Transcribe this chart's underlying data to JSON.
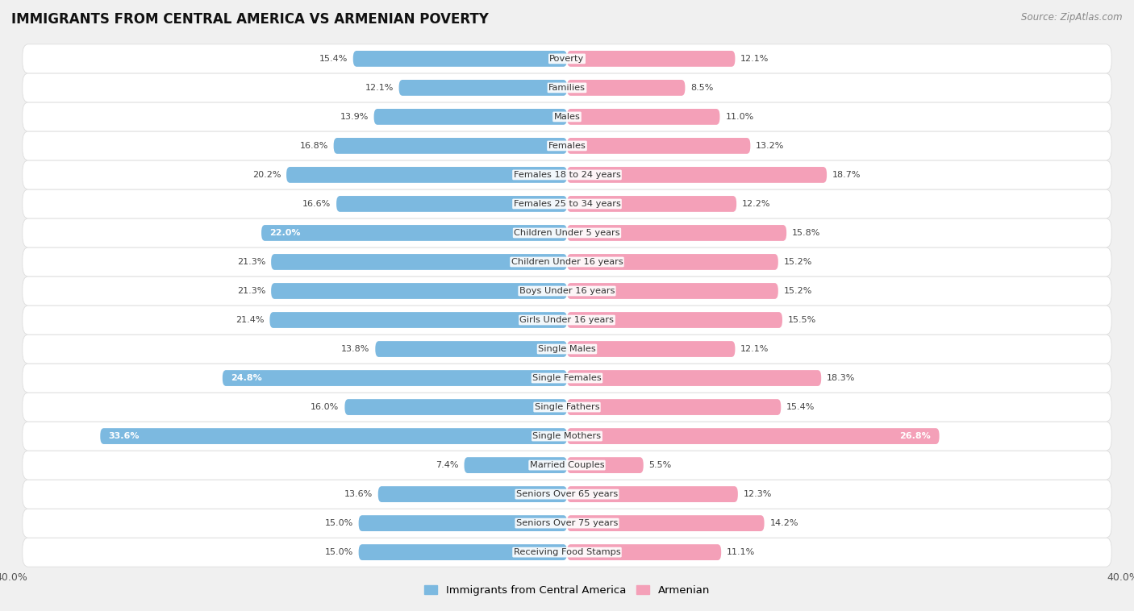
{
  "title": "IMMIGRANTS FROM CENTRAL AMERICA VS ARMENIAN POVERTY",
  "source": "Source: ZipAtlas.com",
  "categories": [
    "Poverty",
    "Families",
    "Males",
    "Females",
    "Females 18 to 24 years",
    "Females 25 to 34 years",
    "Children Under 5 years",
    "Children Under 16 years",
    "Boys Under 16 years",
    "Girls Under 16 years",
    "Single Males",
    "Single Females",
    "Single Fathers",
    "Single Mothers",
    "Married Couples",
    "Seniors Over 65 years",
    "Seniors Over 75 years",
    "Receiving Food Stamps"
  ],
  "left_values": [
    15.4,
    12.1,
    13.9,
    16.8,
    20.2,
    16.6,
    22.0,
    21.3,
    21.3,
    21.4,
    13.8,
    24.8,
    16.0,
    33.6,
    7.4,
    13.6,
    15.0,
    15.0
  ],
  "right_values": [
    12.1,
    8.5,
    11.0,
    13.2,
    18.7,
    12.2,
    15.8,
    15.2,
    15.2,
    15.5,
    12.1,
    18.3,
    15.4,
    26.8,
    5.5,
    12.3,
    14.2,
    11.1
  ],
  "left_color": "#7cb9e0",
  "right_color": "#f4a0b8",
  "left_label": "Immigrants from Central America",
  "right_label": "Armenian",
  "axis_limit": 40.0,
  "background_color": "#f0f0f0",
  "row_color": "#ffffff",
  "title_fontsize": 12,
  "source_fontsize": 8.5,
  "bar_height": 0.55,
  "inside_label_threshold": 22.0
}
